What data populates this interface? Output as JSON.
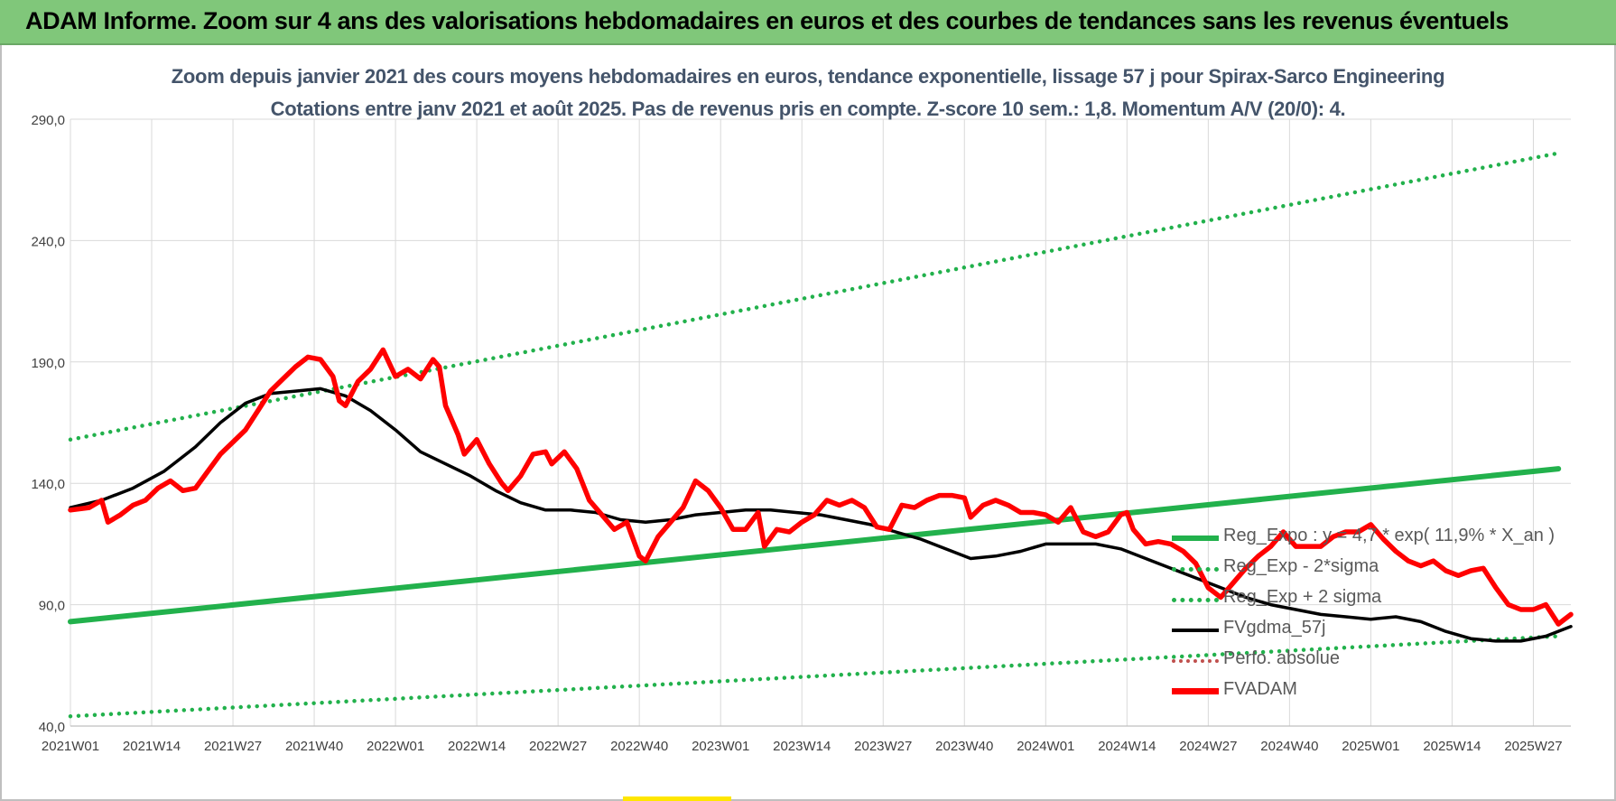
{
  "header": {
    "title": "ADAM Informe. Zoom sur 4 ans des valorisations hebdomadaires en euros et des courbes de tendances sans les revenus éventuels"
  },
  "chart_data": {
    "type": "line",
    "title": "Zoom depuis janvier 2021 des cours moyens hebdomadaires en euros, tendance exponentielle, lissage 57 j pour Spirax-Sarco Engineering",
    "subtitle": "Cotations entre janv 2021 et août 2025. Pas de revenus pris en compte. Z-score 10 sem.: 1,8. Momentum A/V (20/0): 4.",
    "ylim": [
      40,
      290
    ],
    "yticks": [
      "40,0",
      "90,0",
      "140,0",
      "190,0",
      "240,0",
      "290,0"
    ],
    "ytick_values": [
      40,
      90,
      140,
      190,
      240,
      290
    ],
    "x_week_count": 240,
    "xticks": [
      "2021W01",
      "2021W14",
      "2021W27",
      "2021W40",
      "2022W01",
      "2022W14",
      "2022W27",
      "2022W40",
      "2023W01",
      "2023W14",
      "2023W27",
      "2023W40",
      "2024W01",
      "2024W14",
      "2024W27",
      "2024W40",
      "2025W01",
      "2025W14",
      "2025W27"
    ],
    "xtick_weeks": [
      0,
      13,
      26,
      39,
      52,
      65,
      78,
      91,
      104,
      117,
      130,
      143,
      156,
      169,
      182,
      195,
      208,
      221,
      234
    ],
    "grid": true,
    "legend_position": "bottom-right",
    "series": [
      {
        "name": "Reg_Expo : y = 4,7 * exp( 11,9% *  X_an )",
        "color": "#22b14c",
        "style": "solid",
        "points": [
          [
            0,
            83
          ],
          [
            238,
            146
          ]
        ]
      },
      {
        "name": "Reg_Exp - 2*sigma",
        "color": "#22b14c",
        "style": "dotted",
        "points": [
          [
            0,
            44
          ],
          [
            238,
            77
          ]
        ]
      },
      {
        "name": "Reg_Exp + 2 sigma",
        "color": "#22b14c",
        "style": "dotted",
        "points": [
          [
            0,
            158
          ],
          [
            238,
            276
          ]
        ]
      },
      {
        "name": "FVgdma_57j",
        "color": "#000000",
        "style": "solid",
        "points": [
          [
            0,
            130
          ],
          [
            5,
            133
          ],
          [
            10,
            138
          ],
          [
            15,
            145
          ],
          [
            20,
            155
          ],
          [
            24,
            165
          ],
          [
            28,
            173
          ],
          [
            32,
            177
          ],
          [
            36,
            178
          ],
          [
            40,
            179
          ],
          [
            44,
            176
          ],
          [
            48,
            170
          ],
          [
            52,
            162
          ],
          [
            56,
            153
          ],
          [
            60,
            148
          ],
          [
            64,
            143
          ],
          [
            68,
            137
          ],
          [
            72,
            132
          ],
          [
            76,
            129
          ],
          [
            80,
            129
          ],
          [
            84,
            128
          ],
          [
            88,
            125
          ],
          [
            92,
            124
          ],
          [
            96,
            125
          ],
          [
            100,
            127
          ],
          [
            104,
            128
          ],
          [
            108,
            129
          ],
          [
            112,
            129
          ],
          [
            116,
            128
          ],
          [
            120,
            127
          ],
          [
            124,
            125
          ],
          [
            128,
            123
          ],
          [
            132,
            120
          ],
          [
            136,
            117
          ],
          [
            140,
            113
          ],
          [
            144,
            109
          ],
          [
            148,
            110
          ],
          [
            152,
            112
          ],
          [
            156,
            115
          ],
          [
            160,
            115
          ],
          [
            164,
            115
          ],
          [
            168,
            113
          ],
          [
            172,
            109
          ],
          [
            176,
            105
          ],
          [
            180,
            101
          ],
          [
            184,
            97
          ],
          [
            188,
            93
          ],
          [
            192,
            90
          ],
          [
            196,
            88
          ],
          [
            200,
            86
          ],
          [
            204,
            85
          ],
          [
            208,
            84
          ],
          [
            212,
            85
          ],
          [
            216,
            83
          ],
          [
            220,
            79
          ],
          [
            224,
            76
          ],
          [
            228,
            75
          ],
          [
            232,
            75
          ],
          [
            236,
            77
          ],
          [
            240,
            81
          ]
        ]
      },
      {
        "name": "Perfo. absolue",
        "color": "#c0504d",
        "style": "dotted",
        "points": []
      },
      {
        "name": "FVADAM",
        "color": "#ff0000",
        "style": "solid",
        "points": [
          [
            0,
            129
          ],
          [
            3,
            130
          ],
          [
            5,
            133
          ],
          [
            6,
            124
          ],
          [
            8,
            127
          ],
          [
            10,
            131
          ],
          [
            12,
            133
          ],
          [
            14,
            138
          ],
          [
            16,
            141
          ],
          [
            18,
            137
          ],
          [
            20,
            138
          ],
          [
            22,
            145
          ],
          [
            24,
            152
          ],
          [
            26,
            157
          ],
          [
            28,
            162
          ],
          [
            30,
            170
          ],
          [
            32,
            178
          ],
          [
            34,
            183
          ],
          [
            36,
            188
          ],
          [
            38,
            192
          ],
          [
            40,
            191
          ],
          [
            42,
            184
          ],
          [
            43,
            174
          ],
          [
            44,
            172
          ],
          [
            46,
            182
          ],
          [
            48,
            187
          ],
          [
            50,
            195
          ],
          [
            52,
            184
          ],
          [
            54,
            187
          ],
          [
            56,
            183
          ],
          [
            57,
            187
          ],
          [
            58,
            191
          ],
          [
            59,
            188
          ],
          [
            60,
            172
          ],
          [
            62,
            160
          ],
          [
            63,
            152
          ],
          [
            65,
            158
          ],
          [
            67,
            148
          ],
          [
            69,
            140
          ],
          [
            70,
            137
          ],
          [
            72,
            143
          ],
          [
            74,
            152
          ],
          [
            76,
            153
          ],
          [
            77,
            148
          ],
          [
            79,
            153
          ],
          [
            81,
            146
          ],
          [
            83,
            133
          ],
          [
            85,
            127
          ],
          [
            87,
            121
          ],
          [
            89,
            124
          ],
          [
            90,
            117
          ],
          [
            91,
            110
          ],
          [
            92,
            108
          ],
          [
            94,
            118
          ],
          [
            96,
            124
          ],
          [
            98,
            130
          ],
          [
            100,
            141
          ],
          [
            102,
            137
          ],
          [
            104,
            130
          ],
          [
            106,
            121
          ],
          [
            108,
            121
          ],
          [
            110,
            128
          ],
          [
            111,
            114
          ],
          [
            113,
            121
          ],
          [
            115,
            120
          ],
          [
            117,
            124
          ],
          [
            119,
            127
          ],
          [
            121,
            133
          ],
          [
            123,
            131
          ],
          [
            125,
            133
          ],
          [
            127,
            130
          ],
          [
            129,
            122
          ],
          [
            131,
            121
          ],
          [
            133,
            131
          ],
          [
            135,
            130
          ],
          [
            137,
            133
          ],
          [
            139,
            135
          ],
          [
            141,
            135
          ],
          [
            143,
            134
          ],
          [
            144,
            126
          ],
          [
            146,
            131
          ],
          [
            148,
            133
          ],
          [
            150,
            131
          ],
          [
            152,
            128
          ],
          [
            154,
            128
          ],
          [
            156,
            127
          ],
          [
            158,
            124
          ],
          [
            160,
            130
          ],
          [
            162,
            120
          ],
          [
            164,
            118
          ],
          [
            166,
            120
          ],
          [
            168,
            127
          ],
          [
            169,
            128
          ],
          [
            170,
            121
          ],
          [
            172,
            115
          ],
          [
            174,
            116
          ],
          [
            176,
            115
          ],
          [
            178,
            112
          ],
          [
            180,
            107
          ],
          [
            182,
            97
          ],
          [
            184,
            93
          ],
          [
            186,
            99
          ],
          [
            188,
            105
          ],
          [
            190,
            110
          ],
          [
            192,
            114
          ],
          [
            194,
            120
          ],
          [
            196,
            114
          ],
          [
            198,
            114
          ],
          [
            200,
            114
          ],
          [
            202,
            118
          ],
          [
            204,
            120
          ],
          [
            206,
            120
          ],
          [
            208,
            123
          ],
          [
            210,
            117
          ],
          [
            212,
            112
          ],
          [
            214,
            108
          ],
          [
            216,
            106
          ],
          [
            218,
            108
          ],
          [
            220,
            104
          ],
          [
            222,
            102
          ],
          [
            224,
            104
          ],
          [
            226,
            105
          ],
          [
            228,
            97
          ],
          [
            230,
            90
          ],
          [
            232,
            88
          ],
          [
            234,
            88
          ],
          [
            236,
            90
          ],
          [
            238,
            82
          ],
          [
            239,
            84
          ],
          [
            240,
            86
          ]
        ]
      }
    ]
  }
}
